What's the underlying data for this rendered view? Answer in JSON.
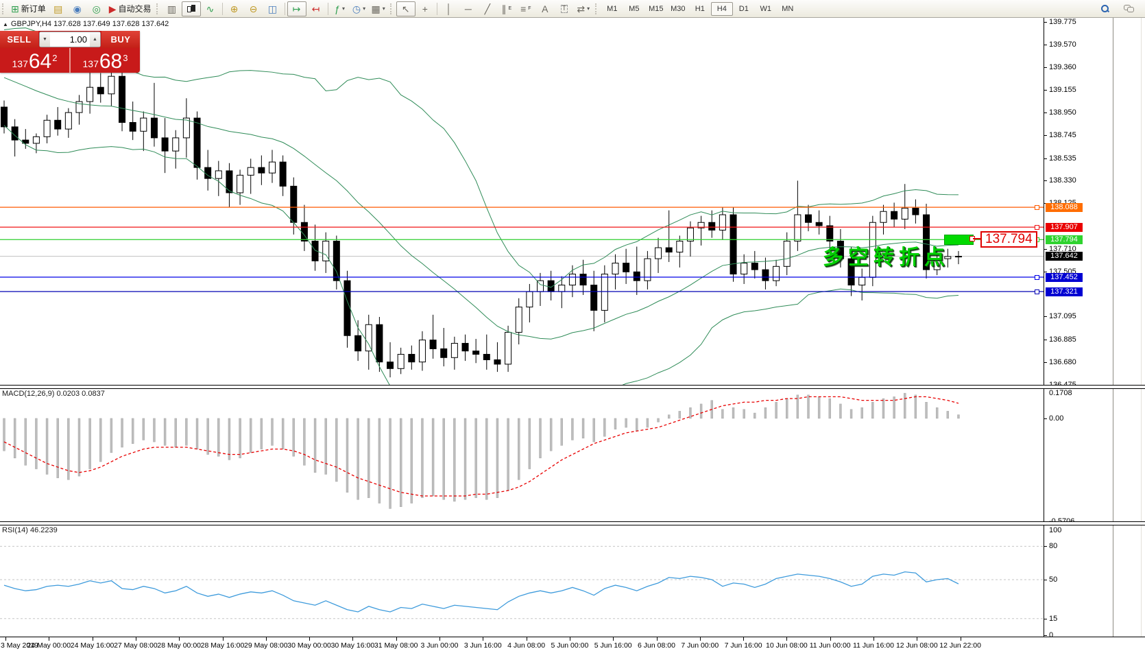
{
  "toolbar": {
    "labels": {
      "new_order": "新订单",
      "autotrading": "自动交易"
    },
    "icon_glyphs": {
      "new_order": "⊞",
      "market_watch": "▤",
      "navigator": "◉",
      "signal": "◎",
      "autotrading": "▶",
      "bar_chart": "▥",
      "line_chart": "∿",
      "zoom_in": "⊕",
      "zoom_out": "⊖",
      "tile_windows": "◫",
      "auto_scroll": "↦",
      "chart_shift": "↤",
      "indicators": "ƒ",
      "periods": "◷",
      "templates": "▦",
      "cursor": "↖",
      "crosshair": "+",
      "vertical_line": "│",
      "horizontal_line": "─",
      "trendline": "╱",
      "channel": "∥",
      "fibonacci": "≡",
      "text": "A",
      "text_label": "T",
      "arrows": "⇄",
      "dropdown": "▾"
    },
    "timeframes": [
      "M1",
      "M5",
      "M15",
      "M30",
      "H1",
      "H4",
      "D1",
      "W1",
      "MN"
    ],
    "active_timeframe": "H4"
  },
  "symbol_bar": {
    "marker": "▲",
    "text": "GBPJPY,H4  137.628 137.649 137.628 137.642"
  },
  "trade_panel": {
    "sell_label": "SELL",
    "buy_label": "BUY",
    "volume": "1.00",
    "sell_prefix": "137",
    "sell_big": "64",
    "sell_sup": "2",
    "buy_prefix": "137",
    "buy_big": "68",
    "buy_sup": "3"
  },
  "annotations": {
    "note_text": "多空转折点",
    "price_callout": "137.794"
  },
  "chart_data": {
    "type": "candlestick",
    "symbol": "GBPJPY",
    "timeframe": "H4",
    "ylim": [
      136.472,
      139.812
    ],
    "candle_up_color": "#ffffff",
    "candle_down_color": "#000000",
    "bollinger": {
      "period": 20,
      "deviation": 2,
      "color": "#2E8B57"
    },
    "pre_closes": [
      139.42,
      139.5,
      139.46,
      139.55,
      139.6,
      139.52,
      139.44,
      139.48,
      139.38,
      139.3,
      139.34,
      139.24,
      139.18,
      139.24,
      139.12,
      139.06,
      139.14,
      139.02,
      138.96,
      139.02
    ],
    "ohlc": [
      [
        139.0,
        139.06,
        138.76,
        138.82
      ],
      [
        138.82,
        138.89,
        138.55,
        138.7
      ],
      [
        138.7,
        138.8,
        138.62,
        138.67
      ],
      [
        138.67,
        138.76,
        138.58,
        138.73
      ],
      [
        138.73,
        138.93,
        138.67,
        138.88
      ],
      [
        138.88,
        139.0,
        138.74,
        138.8
      ],
      [
        138.8,
        138.99,
        138.72,
        138.95
      ],
      [
        138.95,
        139.11,
        138.84,
        139.05
      ],
      [
        139.05,
        139.37,
        138.94,
        139.18
      ],
      [
        139.18,
        139.31,
        139.04,
        139.12
      ],
      [
        139.12,
        139.33,
        139.01,
        139.28
      ],
      [
        139.28,
        139.33,
        138.78,
        138.86
      ],
      [
        138.86,
        139.05,
        138.7,
        138.78
      ],
      [
        138.78,
        138.96,
        138.6,
        138.9
      ],
      [
        138.9,
        139.22,
        138.64,
        138.72
      ],
      [
        138.72,
        138.9,
        138.4,
        138.6
      ],
      [
        138.6,
        138.79,
        138.44,
        138.72
      ],
      [
        138.72,
        139.08,
        138.54,
        138.9
      ],
      [
        138.9,
        138.96,
        138.34,
        138.45
      ],
      [
        138.45,
        138.61,
        138.24,
        138.35
      ],
      [
        138.35,
        138.51,
        138.19,
        138.42
      ],
      [
        138.42,
        138.49,
        138.09,
        138.22
      ],
      [
        138.22,
        138.43,
        138.11,
        138.38
      ],
      [
        138.38,
        138.53,
        138.21,
        138.45
      ],
      [
        138.45,
        138.56,
        138.29,
        138.4
      ],
      [
        138.4,
        138.61,
        138.31,
        138.5
      ],
      [
        138.5,
        138.56,
        138.19,
        138.28
      ],
      [
        138.28,
        138.36,
        137.84,
        137.95
      ],
      [
        137.95,
        138.11,
        137.69,
        137.78
      ],
      [
        137.78,
        137.93,
        137.51,
        137.6
      ],
      [
        137.6,
        137.86,
        137.49,
        137.78
      ],
      [
        137.78,
        137.83,
        137.34,
        137.42
      ],
      [
        137.42,
        137.51,
        136.81,
        136.92
      ],
      [
        136.92,
        137.06,
        136.69,
        136.78
      ],
      [
        136.78,
        137.11,
        136.61,
        137.02
      ],
      [
        137.02,
        137.09,
        136.59,
        136.68
      ],
      [
        136.68,
        136.86,
        136.54,
        136.62
      ],
      [
        136.62,
        136.81,
        136.57,
        136.75
      ],
      [
        136.75,
        136.83,
        136.61,
        136.68
      ],
      [
        136.68,
        136.96,
        136.6,
        136.88
      ],
      [
        136.88,
        137.11,
        136.71,
        136.8
      ],
      [
        136.8,
        136.99,
        136.64,
        136.72
      ],
      [
        136.72,
        136.91,
        136.61,
        136.85
      ],
      [
        136.85,
        136.93,
        136.69,
        136.78
      ],
      [
        136.78,
        136.89,
        136.67,
        136.75
      ],
      [
        136.75,
        136.93,
        136.61,
        136.7
      ],
      [
        136.7,
        136.86,
        136.59,
        136.66
      ],
      [
        136.66,
        137.01,
        136.59,
        136.95
      ],
      [
        136.95,
        137.26,
        136.84,
        137.18
      ],
      [
        137.18,
        137.39,
        137.04,
        137.32
      ],
      [
        137.32,
        137.49,
        137.19,
        137.42
      ],
      [
        137.42,
        137.51,
        137.24,
        137.32
      ],
      [
        137.32,
        137.46,
        137.17,
        137.38
      ],
      [
        137.38,
        137.56,
        137.27,
        137.48
      ],
      [
        137.48,
        137.61,
        137.29,
        137.38
      ],
      [
        137.38,
        137.51,
        136.96,
        137.15
      ],
      [
        137.15,
        137.56,
        137.04,
        137.48
      ],
      [
        137.48,
        137.66,
        137.34,
        137.58
      ],
      [
        137.58,
        137.71,
        137.39,
        137.5
      ],
      [
        137.5,
        137.73,
        137.29,
        137.42
      ],
      [
        137.42,
        137.69,
        137.34,
        137.62
      ],
      [
        137.62,
        137.81,
        137.49,
        137.72
      ],
      [
        137.72,
        138.06,
        137.59,
        137.68
      ],
      [
        137.68,
        137.83,
        137.54,
        137.78
      ],
      [
        137.78,
        137.96,
        137.64,
        137.9
      ],
      [
        137.9,
        138.01,
        137.74,
        137.95
      ],
      [
        137.95,
        138.06,
        137.81,
        137.88
      ],
      [
        137.88,
        138.09,
        137.79,
        138.02
      ],
      [
        138.02,
        138.09,
        137.41,
        137.48
      ],
      [
        137.48,
        137.66,
        137.39,
        137.58
      ],
      [
        137.58,
        137.69,
        137.44,
        137.52
      ],
      [
        137.52,
        137.63,
        137.34,
        137.42
      ],
      [
        137.42,
        137.61,
        137.37,
        137.55
      ],
      [
        137.55,
        137.86,
        137.47,
        137.78
      ],
      [
        137.78,
        138.33,
        137.69,
        138.02
      ],
      [
        138.02,
        138.11,
        137.87,
        137.95
      ],
      [
        137.95,
        138.06,
        137.84,
        137.92
      ],
      [
        137.92,
        138.01,
        137.71,
        137.78
      ],
      [
        137.78,
        137.89,
        137.54,
        137.62
      ],
      [
        137.62,
        137.73,
        137.28,
        137.38
      ],
      [
        137.38,
        137.53,
        137.24,
        137.45
      ],
      [
        137.45,
        138.01,
        137.37,
        137.95
      ],
      [
        137.95,
        138.11,
        137.84,
        138.05
      ],
      [
        138.05,
        138.13,
        137.91,
        137.98
      ],
      [
        137.98,
        138.3,
        137.89,
        138.08
      ],
      [
        138.08,
        138.16,
        137.94,
        138.02
      ],
      [
        138.02,
        138.12,
        137.44,
        137.52
      ],
      [
        137.52,
        137.69,
        137.47,
        137.62
      ],
      [
        137.62,
        137.71,
        137.54,
        137.64
      ],
      [
        137.64,
        137.69,
        137.57,
        137.642
      ]
    ],
    "price_ticks": [
      "139.775",
      "139.570",
      "139.360",
      "139.155",
      "138.950",
      "138.745",
      "138.535",
      "138.330",
      "138.125",
      "137.710",
      "137.505",
      "137.095",
      "136.885",
      "136.680",
      "136.475"
    ],
    "hlines": [
      {
        "price": 138.088,
        "label": "138.088",
        "line": "#ff5a00",
        "tag": "#ff6d00"
      },
      {
        "price": 137.907,
        "label": "137.907",
        "line": "#f01414",
        "tag": "#ea0000"
      },
      {
        "price": 137.794,
        "label": "137.794",
        "line": "#2fcf2f",
        "tag": "#2fd32f"
      },
      {
        "price": 137.452,
        "label": "137.452",
        "line": "#0000e6",
        "tag": "#0000d2"
      },
      {
        "price": 137.321,
        "label": "137.321",
        "line": "#0000b4",
        "tag": "#0000d2"
      }
    ],
    "current_price": {
      "price": 137.642,
      "label": "137.642",
      "line": "#c0c0c0",
      "tag": "#000000"
    },
    "macd": {
      "label": "MACD(12,26,9) 0.0203 0.0837",
      "ylim": [
        -0.5706,
        0.1708
      ],
      "scale_labels": [
        {
          "v": 0.1708,
          "t": "0.1708"
        },
        {
          "v": 0,
          "t": "0.00"
        },
        {
          "v": -0.5706,
          "t": "-0.5706"
        }
      ],
      "histogram_color": "#bdbdbd",
      "signal_color": "#e80000",
      "histogram": [
        -0.18,
        -0.22,
        -0.26,
        -0.28,
        -0.31,
        -0.33,
        -0.34,
        -0.32,
        -0.28,
        -0.24,
        -0.19,
        -0.16,
        -0.14,
        -0.12,
        -0.13,
        -0.15,
        -0.16,
        -0.15,
        -0.17,
        -0.2,
        -0.21,
        -0.23,
        -0.22,
        -0.19,
        -0.17,
        -0.15,
        -0.17,
        -0.21,
        -0.26,
        -0.3,
        -0.31,
        -0.35,
        -0.41,
        -0.45,
        -0.44,
        -0.47,
        -0.5,
        -0.49,
        -0.47,
        -0.44,
        -0.43,
        -0.45,
        -0.46,
        -0.45,
        -0.44,
        -0.45,
        -0.44,
        -0.4,
        -0.34,
        -0.28,
        -0.22,
        -0.18,
        -0.15,
        -0.12,
        -0.11,
        -0.13,
        -0.1,
        -0.06,
        -0.05,
        -0.07,
        -0.05,
        -0.02,
        0.02,
        0.04,
        0.06,
        0.08,
        0.1,
        0.05,
        0.06,
        0.05,
        0.03,
        0.06,
        0.09,
        0.11,
        0.13,
        0.13,
        0.12,
        0.11,
        0.08,
        0.05,
        0.06,
        0.09,
        0.11,
        0.12,
        0.14,
        0.13,
        0.09,
        0.06,
        0.04,
        0.0203
      ],
      "signal": [
        -0.13,
        -0.16,
        -0.19,
        -0.22,
        -0.25,
        -0.27,
        -0.29,
        -0.3,
        -0.29,
        -0.27,
        -0.24,
        -0.21,
        -0.19,
        -0.17,
        -0.16,
        -0.16,
        -0.16,
        -0.16,
        -0.17,
        -0.18,
        -0.19,
        -0.2,
        -0.2,
        -0.19,
        -0.18,
        -0.17,
        -0.17,
        -0.18,
        -0.2,
        -0.23,
        -0.25,
        -0.27,
        -0.3,
        -0.33,
        -0.35,
        -0.37,
        -0.39,
        -0.41,
        -0.42,
        -0.43,
        -0.43,
        -0.43,
        -0.43,
        -0.43,
        -0.42,
        -0.42,
        -0.41,
        -0.4,
        -0.38,
        -0.35,
        -0.31,
        -0.27,
        -0.23,
        -0.2,
        -0.17,
        -0.14,
        -0.12,
        -0.1,
        -0.08,
        -0.07,
        -0.06,
        -0.05,
        -0.03,
        -0.01,
        0.01,
        0.03,
        0.05,
        0.07,
        0.08,
        0.09,
        0.09,
        0.1,
        0.1,
        0.11,
        0.11,
        0.12,
        0.12,
        0.12,
        0.12,
        0.11,
        0.1,
        0.1,
        0.1,
        0.1,
        0.11,
        0.12,
        0.12,
        0.11,
        0.1,
        0.0837
      ]
    },
    "rsi": {
      "label": "RSI(14) 46.2239",
      "ylim": [
        0,
        100
      ],
      "levels": [
        80,
        50,
        15
      ],
      "scale_labels": [
        {
          "v": 100,
          "t": "100"
        },
        {
          "v": 80,
          "t": "80"
        },
        {
          "v": 50,
          "t": "50"
        },
        {
          "v": 15,
          "t": "15"
        },
        {
          "v": 0,
          "t": "0"
        }
      ],
      "color": "#3e9bdc",
      "values": [
        45,
        42,
        40,
        41,
        44,
        45,
        44,
        46,
        49,
        47,
        49,
        42,
        41,
        44,
        42,
        38,
        40,
        44,
        38,
        35,
        37,
        34,
        37,
        39,
        38,
        40,
        36,
        31,
        29,
        27,
        31,
        27,
        23,
        21,
        26,
        23,
        21,
        25,
        24,
        28,
        26,
        24,
        27,
        26,
        25,
        24,
        23,
        30,
        35,
        38,
        40,
        38,
        40,
        43,
        40,
        36,
        42,
        45,
        43,
        40,
        44,
        47,
        52,
        51,
        53,
        52,
        50,
        44,
        47,
        46,
        43,
        46,
        51,
        53,
        55,
        54,
        53,
        51,
        48,
        44,
        46,
        53,
        55,
        54,
        57,
        56,
        48,
        50,
        51,
        46.22
      ],
      "last_value": "46.2239"
    },
    "time_labels": [
      "3 May 2019",
      "24 May 00:00",
      "24 May 16:00",
      "27 May 08:00",
      "28 May 00:00",
      "28 May 16:00",
      "29 May 08:00",
      "30 May 00:00",
      "30 May 16:00",
      "31 May 08:00",
      "3 Jun 00:00",
      "3 Jun 16:00",
      "4 Jun 08:00",
      "5 Jun 00:00",
      "5 Jun 16:00",
      "6 Jun 08:00",
      "7 Jun 00:00",
      "7 Jun 16:00",
      "10 Jun 08:00",
      "11 Jun 00:00",
      "11 Jun 16:00",
      "12 Jun 08:00",
      "12 Jun 22:00"
    ]
  }
}
